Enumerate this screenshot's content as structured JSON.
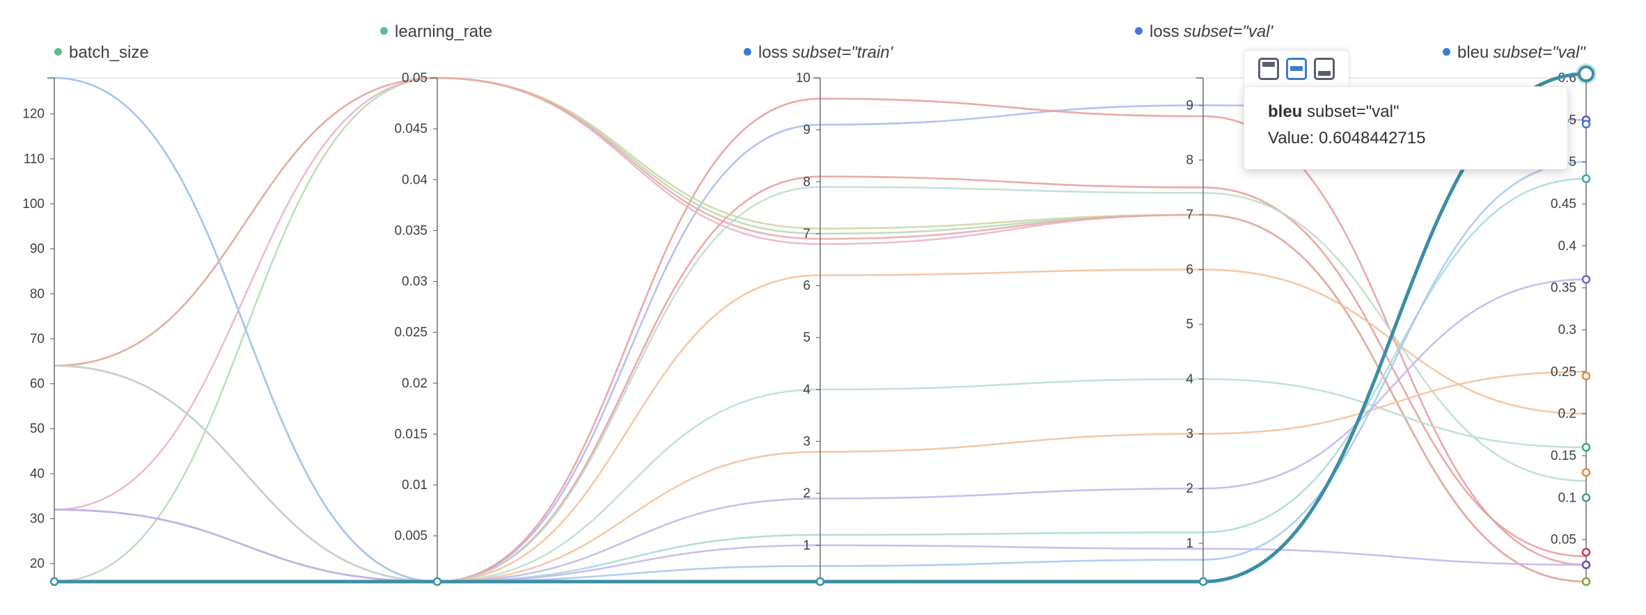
{
  "chart_data": {
    "type": "parallel-coordinates",
    "axes": [
      {
        "name": "batch_size",
        "subset": "",
        "dot_color": "#5bbf8a",
        "range": [
          16,
          128
        ],
        "ticks": [
          "20",
          "30",
          "40",
          "50",
          "60",
          "70",
          "80",
          "90",
          "100",
          "110",
          "120"
        ],
        "tick_values": [
          20,
          30,
          40,
          50,
          60,
          70,
          80,
          90,
          100,
          110,
          120
        ]
      },
      {
        "name": "learning_rate",
        "subset": "",
        "dot_color": "#5bbf8a",
        "range": [
          0.0005,
          0.05
        ],
        "ticks": [
          "0.005",
          "0.01",
          "0.015",
          "0.02",
          "0.025",
          "0.03",
          "0.035",
          "0.04",
          "0.045",
          "0.05"
        ],
        "tick_values": [
          0.005,
          0.01,
          0.015,
          0.02,
          0.025,
          0.03,
          0.035,
          0.04,
          0.045,
          0.05
        ]
      },
      {
        "name": "loss",
        "subset": "subset=\"train'",
        "dot_color": "#3a7bd5",
        "range": [
          0.3,
          10
        ],
        "ticks": [
          "1",
          "2",
          "3",
          "4",
          "5",
          "6",
          "7",
          "8",
          "9",
          "10"
        ],
        "tick_values": [
          1,
          2,
          3,
          4,
          5,
          6,
          7,
          8,
          9,
          10
        ]
      },
      {
        "name": "loss",
        "subset": "subset=\"val'",
        "dot_color": "#3a7bd5",
        "range": [
          0.3,
          9.5
        ],
        "ticks": [
          "1",
          "2",
          "3",
          "4",
          "5",
          "6",
          "7",
          "8",
          "9"
        ],
        "tick_values": [
          1,
          2,
          3,
          4,
          5,
          6,
          7,
          8,
          9
        ]
      },
      {
        "name": "bleu",
        "subset": "subset=\"val\"",
        "dot_color": "#3a7bd5",
        "range": [
          0,
          0.6
        ],
        "ticks": [
          "0.05",
          "0.1",
          "0.15",
          "0.2",
          "0.25",
          "0.3",
          "0.35",
          "0.4",
          "0.45",
          "0.5",
          "0.55",
          "0.6"
        ],
        "tick_values": [
          0.05,
          0.1,
          0.15,
          0.2,
          0.25,
          0.3,
          0.35,
          0.4,
          0.45,
          0.5,
          0.55,
          0.6
        ]
      }
    ],
    "series": [
      {
        "color": "#a9b7ec",
        "values": [
          128,
          0.0005,
          9.1,
          9.0,
          0.55
        ]
      },
      {
        "color": "#e89a9a",
        "values": [
          64,
          0.0005,
          9.6,
          8.8,
          0.02
        ]
      },
      {
        "color": "#e89a9a",
        "values": [
          32,
          0.0005,
          8.1,
          7.5,
          0.03
        ]
      },
      {
        "color": "#b4d8b4",
        "values": [
          16,
          0.05,
          7.0,
          7.0,
          0.0
        ]
      },
      {
        "color": "#eab0c8",
        "values": [
          32,
          0.05,
          6.8,
          7.0,
          0.0
        ]
      },
      {
        "color": "#c8d89c",
        "values": [
          64,
          0.05,
          7.1,
          7.0,
          0.0
        ]
      },
      {
        "color": "#e8a7a7",
        "values": [
          64,
          0.05,
          6.9,
          7.0,
          0.0
        ]
      },
      {
        "color": "#bcdccd",
        "values": [
          64,
          0.0005,
          7.9,
          7.4,
          0.12
        ]
      },
      {
        "color": "#f2c09a",
        "values": [
          16,
          0.0005,
          6.2,
          6.0,
          0.2
        ]
      },
      {
        "color": "#bcdccd",
        "values": [
          16,
          0.0005,
          4.0,
          4.0,
          0.16
        ]
      },
      {
        "color": "#f2c09a",
        "values": [
          16,
          0.0005,
          2.8,
          3.0,
          0.25
        ]
      },
      {
        "color": "#c0b4e8",
        "values": [
          32,
          0.0005,
          1.9,
          2.0,
          0.36
        ]
      },
      {
        "color": "#a8d8d8",
        "values": [
          16,
          0.0005,
          1.2,
          1.2,
          0.48
        ]
      },
      {
        "color": "#c0b4e8",
        "values": [
          32,
          0.0005,
          1.0,
          0.9,
          0.02
        ]
      },
      {
        "color": "#a6c6ec",
        "values": [
          128,
          0.0005,
          0.6,
          0.7,
          0.5
        ]
      },
      {
        "color": "#3b8ea5",
        "highlight": true,
        "values": [
          16,
          0.0005,
          0.3,
          0.3,
          0.6048442715
        ]
      }
    ],
    "endpoint_markers": [
      {
        "value": 0.55,
        "color": "#5a4fc4"
      },
      {
        "value": 0.545,
        "color": "#3a7bd5"
      },
      {
        "value": 0.48,
        "color": "#3aa8a8"
      },
      {
        "value": 0.36,
        "color": "#7a5fc4"
      },
      {
        "value": 0.245,
        "color": "#e58a3a"
      },
      {
        "value": 0.16,
        "color": "#3aa86a"
      },
      {
        "value": 0.13,
        "color": "#e58a3a"
      },
      {
        "value": 0.1,
        "color": "#3aa86a"
      },
      {
        "value": 0.035,
        "color": "#d03a4a"
      },
      {
        "value": 0.02,
        "color": "#5a4fc4"
      },
      {
        "value": 0.0,
        "color": "#7aa83a"
      }
    ],
    "highlight_value": "0.6048442715"
  },
  "tooltip": {
    "metric": "bleu",
    "subset": "subset=\"val\"",
    "value_label": "Value:",
    "value": "0.6048442715"
  }
}
